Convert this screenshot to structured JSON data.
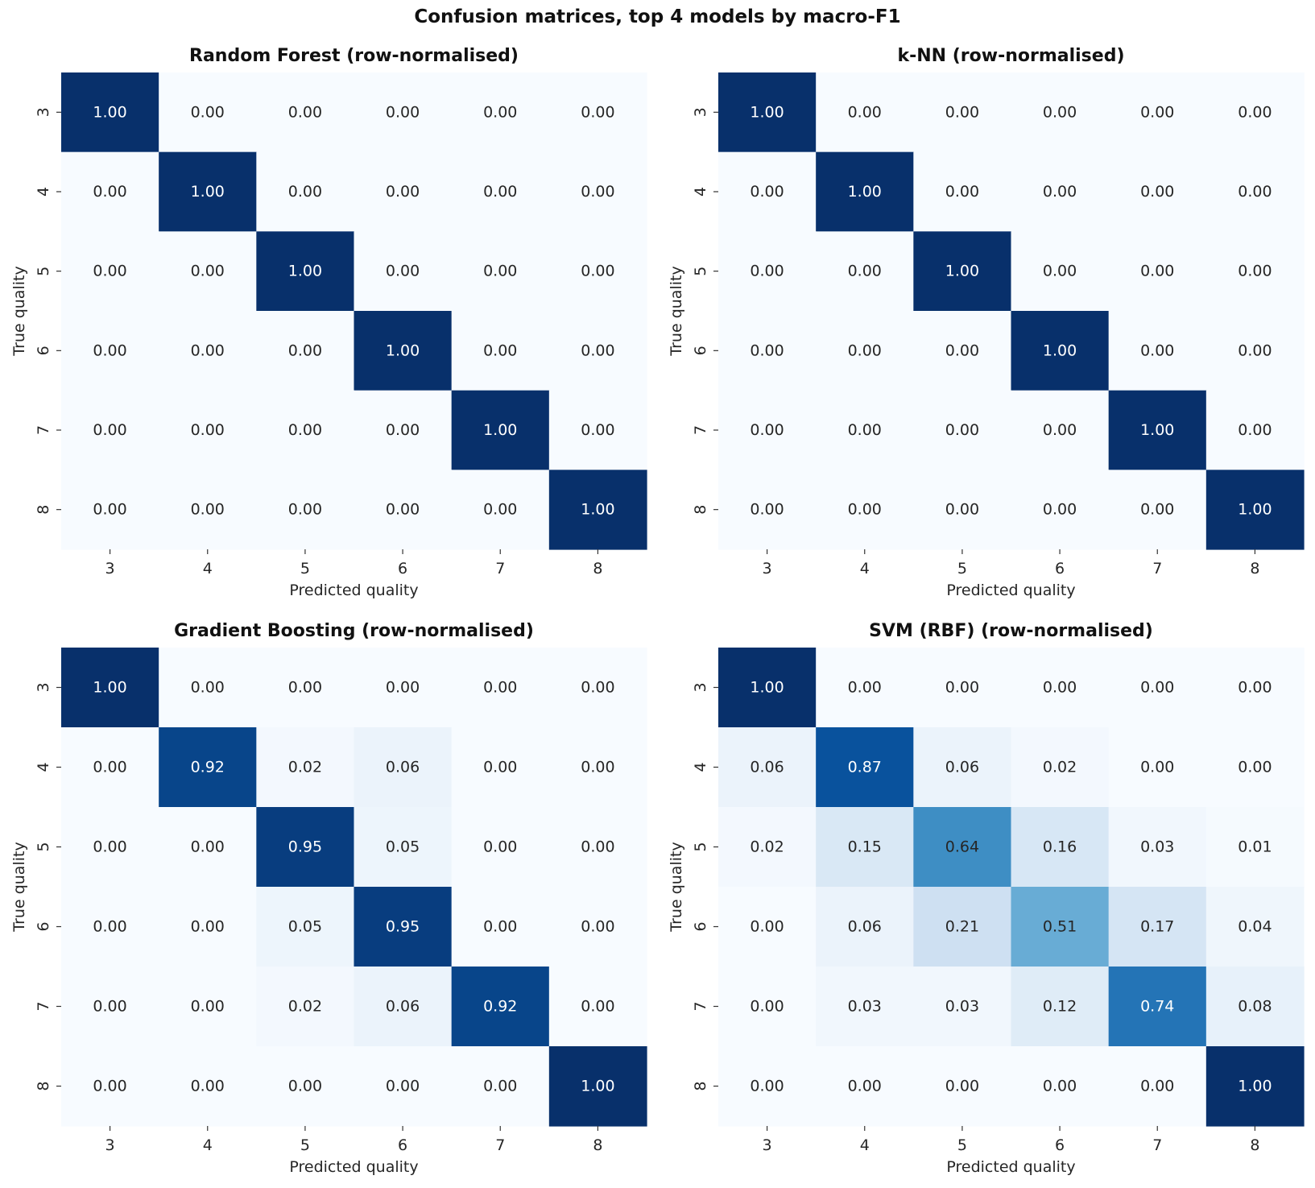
{
  "figure": {
    "suptitle": "Confusion matrices, top 4 models by macro-F1"
  },
  "chart_data": [
    {
      "type": "heatmap",
      "title": "Random Forest  (row-normalised)",
      "xlabel": "Predicted quality",
      "ylabel": "True quality",
      "x_categories": [
        "3",
        "4",
        "5",
        "6",
        "7",
        "8"
      ],
      "y_categories": [
        "3",
        "4",
        "5",
        "6",
        "7",
        "8"
      ],
      "colormap": "Blues",
      "vmin": 0,
      "vmax": 1,
      "values": [
        [
          1.0,
          0.0,
          0.0,
          0.0,
          0.0,
          0.0
        ],
        [
          0.0,
          1.0,
          0.0,
          0.0,
          0.0,
          0.0
        ],
        [
          0.0,
          0.0,
          1.0,
          0.0,
          0.0,
          0.0
        ],
        [
          0.0,
          0.0,
          0.0,
          1.0,
          0.0,
          0.0
        ],
        [
          0.0,
          0.0,
          0.0,
          0.0,
          1.0,
          0.0
        ],
        [
          0.0,
          0.0,
          0.0,
          0.0,
          0.0,
          1.0
        ]
      ]
    },
    {
      "type": "heatmap",
      "title": "k-NN  (row-normalised)",
      "xlabel": "Predicted quality",
      "ylabel": "True quality",
      "x_categories": [
        "3",
        "4",
        "5",
        "6",
        "7",
        "8"
      ],
      "y_categories": [
        "3",
        "4",
        "5",
        "6",
        "7",
        "8"
      ],
      "colormap": "Blues",
      "vmin": 0,
      "vmax": 1,
      "values": [
        [
          1.0,
          0.0,
          0.0,
          0.0,
          0.0,
          0.0
        ],
        [
          0.0,
          1.0,
          0.0,
          0.0,
          0.0,
          0.0
        ],
        [
          0.0,
          0.0,
          1.0,
          0.0,
          0.0,
          0.0
        ],
        [
          0.0,
          0.0,
          0.0,
          1.0,
          0.0,
          0.0
        ],
        [
          0.0,
          0.0,
          0.0,
          0.0,
          1.0,
          0.0
        ],
        [
          0.0,
          0.0,
          0.0,
          0.0,
          0.0,
          1.0
        ]
      ]
    },
    {
      "type": "heatmap",
      "title": "Gradient Boosting  (row-normalised)",
      "xlabel": "Predicted quality",
      "ylabel": "True quality",
      "x_categories": [
        "3",
        "4",
        "5",
        "6",
        "7",
        "8"
      ],
      "y_categories": [
        "3",
        "4",
        "5",
        "6",
        "7",
        "8"
      ],
      "colormap": "Blues",
      "vmin": 0,
      "vmax": 1,
      "values": [
        [
          1.0,
          0.0,
          0.0,
          0.0,
          0.0,
          0.0
        ],
        [
          0.0,
          0.92,
          0.02,
          0.06,
          0.0,
          0.0
        ],
        [
          0.0,
          0.0,
          0.95,
          0.05,
          0.0,
          0.0
        ],
        [
          0.0,
          0.0,
          0.05,
          0.95,
          0.0,
          0.0
        ],
        [
          0.0,
          0.0,
          0.02,
          0.06,
          0.92,
          0.0
        ],
        [
          0.0,
          0.0,
          0.0,
          0.0,
          0.0,
          1.0
        ]
      ]
    },
    {
      "type": "heatmap",
      "title": "SVM (RBF)  (row-normalised)",
      "xlabel": "Predicted quality",
      "ylabel": "True quality",
      "x_categories": [
        "3",
        "4",
        "5",
        "6",
        "7",
        "8"
      ],
      "y_categories": [
        "3",
        "4",
        "5",
        "6",
        "7",
        "8"
      ],
      "colormap": "Blues",
      "vmin": 0,
      "vmax": 1,
      "values": [
        [
          1.0,
          0.0,
          0.0,
          0.0,
          0.0,
          0.0
        ],
        [
          0.06,
          0.87,
          0.06,
          0.02,
          0.0,
          0.0
        ],
        [
          0.02,
          0.15,
          0.64,
          0.16,
          0.03,
          0.01
        ],
        [
          0.0,
          0.06,
          0.21,
          0.51,
          0.17,
          0.04
        ],
        [
          0.0,
          0.03,
          0.03,
          0.12,
          0.74,
          0.08
        ],
        [
          0.0,
          0.0,
          0.0,
          0.0,
          0.0,
          1.0
        ]
      ]
    }
  ]
}
